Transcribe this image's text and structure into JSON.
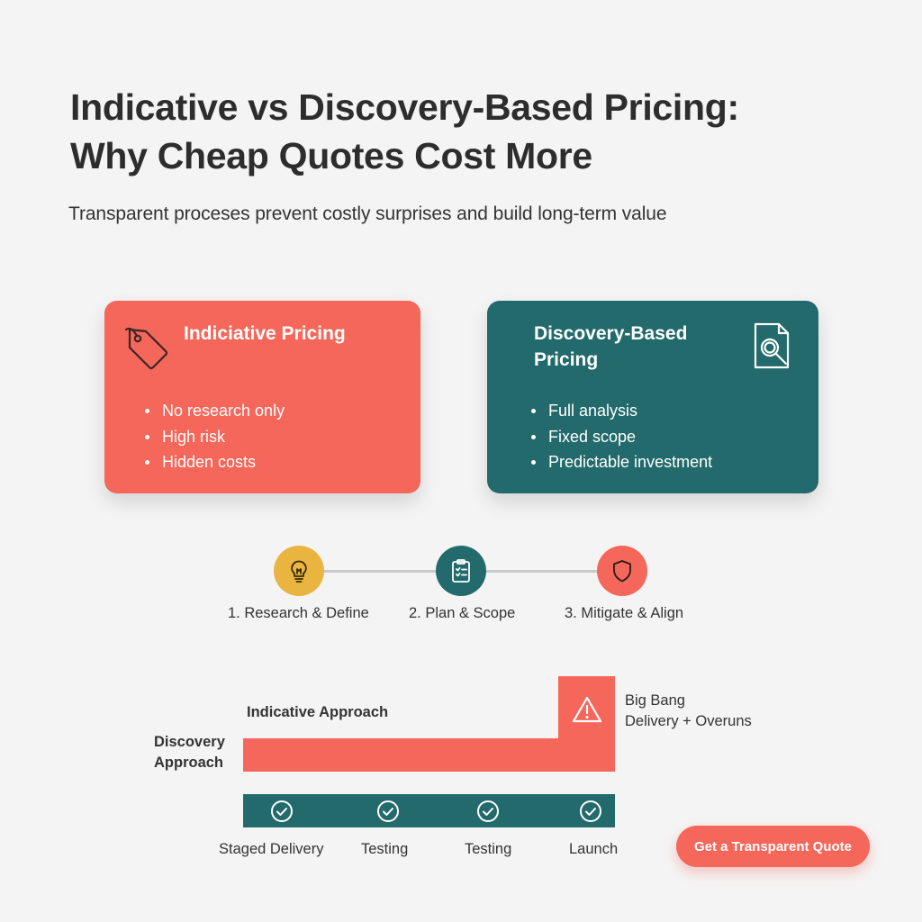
{
  "header": {
    "title_line1": "Indicative vs Discovery-Based Pricing:",
    "title_line2": "Why Cheap Quotes Cost More",
    "subtitle": "Transparent proceses prevent costly surprises and build long-term value"
  },
  "cards": {
    "indicative": {
      "icon": "price-tag-icon",
      "title": "Indiciative Pricing",
      "color": "#f4675a",
      "points": [
        "No research only",
        "High risk",
        "Hidden costs"
      ]
    },
    "discovery": {
      "icon": "document-search-icon",
      "title_line1": "Discovery-Based",
      "title_line2": "Pricing",
      "color": "#226a6b",
      "points": [
        "Full analysis",
        "Fixed scope",
        "Predictable investment"
      ]
    }
  },
  "steps": [
    {
      "label": "1. Research & Define",
      "icon": "lightbulb-icon",
      "color": "#e9b540"
    },
    {
      "label": "2. Plan & Scope",
      "icon": "clipboard-icon",
      "color": "#226a6b"
    },
    {
      "label": "3. Mitigate & Align",
      "icon": "shield-icon",
      "color": "#f4675a"
    }
  ],
  "comparison": {
    "indicative_label": "Indicative Approach",
    "discovery_label_line1": "Discovery",
    "discovery_label_line2": "Approach",
    "big_bang_line1": "Big Bang",
    "big_bang_line2": "Delivery + Overuns",
    "warning_icon": "warning-icon",
    "stages": [
      "Staged Delivery",
      "Testing",
      "Testing",
      "Launch"
    ],
    "check_icon": "check-circle-icon"
  },
  "cta": {
    "label": "Get a Transparent Quote"
  }
}
